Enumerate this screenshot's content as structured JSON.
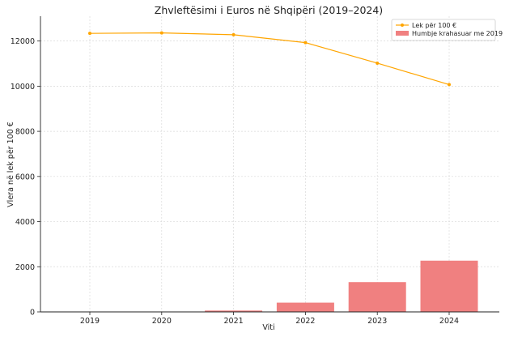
{
  "chart_data": {
    "type": "bar",
    "title": "Zhvleftësimi i Euros në Shqipëri (2019–2024)",
    "xlabel": "Viti",
    "ylabel": "Vlera në lek për 100 €",
    "categories": [
      "2019",
      "2020",
      "2021",
      "2022",
      "2023",
      "2024"
    ],
    "ylim": [
      0,
      13100
    ],
    "yticks": [
      0,
      2000,
      4000,
      6000,
      8000,
      10000,
      12000
    ],
    "grid": true,
    "legend_position": "top-right",
    "series": [
      {
        "name": "Lek për 100 €",
        "kind": "line",
        "color": "#FFA500",
        "values": [
          12340,
          12360,
          12280,
          11930,
          11020,
          10070
        ]
      },
      {
        "name": "Humbje krahasuar me 2019",
        "kind": "bar",
        "color": "#F08080",
        "values": [
          0,
          0,
          60,
          410,
          1320,
          2270
        ]
      }
    ]
  }
}
